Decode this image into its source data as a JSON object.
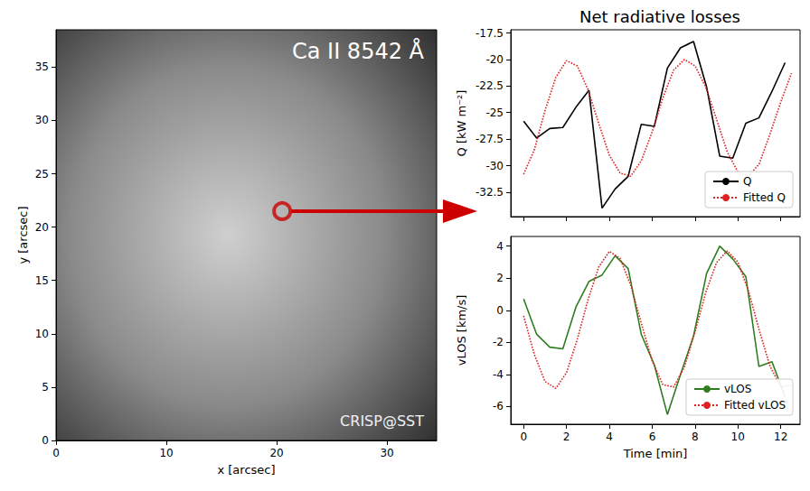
{
  "chart_data": [
    {
      "type": "image",
      "title": "Ca II 8542 Å",
      "annotations": [
        "CRISP@SST"
      ],
      "x_label": "x [arcsec]",
      "y_label": "y [arcsec]",
      "xlim": [
        0,
        34.5
      ],
      "xticks": [
        0,
        10,
        20,
        30
      ],
      "ylim": [
        0,
        38.5
      ],
      "yticks": [
        0,
        5,
        10,
        15,
        20,
        25,
        30,
        35
      ],
      "highlight": {
        "x": 20.5,
        "y": 21.5,
        "color": "#cc0000"
      }
    },
    {
      "type": "line",
      "title": "Net radiative losses",
      "y_label": "Q [kW m⁻²]",
      "xlim": [
        -0.6,
        12.9
      ],
      "xticks": [
        0,
        2,
        4,
        6,
        8,
        10,
        12
      ],
      "ylim": [
        -34.8,
        -17.2
      ],
      "yticks": [
        -32.5,
        -30,
        -27.5,
        -25,
        -22.5,
        -20,
        -17.5
      ],
      "tick_labels": "y",
      "legend": "lower right",
      "grid": false,
      "series": [
        {
          "name": "Q",
          "color": "#000000",
          "line_style": "solid",
          "x": [
            0,
            0.61,
            1.22,
            1.83,
            2.44,
            3.05,
            3.66,
            4.27,
            4.88,
            5.49,
            6.1,
            6.71,
            7.32,
            7.93,
            8.54,
            9.15,
            9.76,
            10.37,
            10.98,
            11.59,
            12.2
          ],
          "values": [
            -25.8,
            -27.4,
            -26.5,
            -26.4,
            -24.5,
            -22.9,
            -34.0,
            -32.2,
            -31.0,
            -26.1,
            -26.3,
            -20.8,
            -18.9,
            -18.3,
            -22.6,
            -29.1,
            -29.3,
            -26.0,
            -25.5,
            -23.0,
            -20.3
          ]
        },
        {
          "name": "Fitted Q",
          "color": "#e02020",
          "line_style": "dotted",
          "x": [
            0,
            0.5,
            1,
            1.5,
            2,
            2.5,
            3,
            3.5,
            4,
            4.5,
            5,
            5.5,
            6,
            6.5,
            7,
            7.5,
            8,
            8.5,
            9,
            9.5,
            10,
            10.5,
            11,
            11.5,
            12,
            12.5
          ],
          "values": [
            -30.8,
            -28.5,
            -24.8,
            -21.7,
            -20.1,
            -20.6,
            -22.8,
            -26.0,
            -29.0,
            -30.7,
            -31.0,
            -29.5,
            -26.8,
            -23.6,
            -21.0,
            -20.0,
            -20.6,
            -22.6,
            -25.6,
            -28.7,
            -30.6,
            -31.0,
            -29.8,
            -27.0,
            -24.0,
            -21.3
          ]
        }
      ]
    },
    {
      "type": "line",
      "x_label": "Time [min]",
      "y_label": "vLOS [km/s]",
      "xlim": [
        -0.6,
        12.9
      ],
      "xticks": [
        0,
        2,
        4,
        6,
        8,
        10,
        12
      ],
      "ylim": [
        -7.1,
        4.6
      ],
      "yticks": [
        -6,
        -4,
        -2,
        0,
        2,
        4
      ],
      "tick_labels": true,
      "legend": "lower right",
      "grid": false,
      "series": [
        {
          "name": "vLOS",
          "color": "#2e7d1e",
          "line_style": "solid",
          "x": [
            0,
            0.61,
            1.22,
            1.83,
            2.44,
            3.05,
            3.66,
            4.27,
            4.88,
            5.49,
            6.1,
            6.71,
            7.32,
            7.93,
            8.54,
            9.15,
            9.76,
            10.37,
            10.98,
            11.59,
            12.2
          ],
          "values": [
            0.7,
            -1.5,
            -2.3,
            -2.4,
            0.2,
            1.8,
            2.2,
            3.4,
            2.6,
            -1.5,
            -3.4,
            -6.5,
            -4.0,
            -1.6,
            2.3,
            4.0,
            3.2,
            2.1,
            -3.5,
            -3.2,
            -5.4
          ]
        },
        {
          "name": "Fitted vLOS",
          "color": "#e02020",
          "line_style": "dotted",
          "x": [
            0,
            0.5,
            1,
            1.5,
            2,
            2.5,
            3,
            3.5,
            4,
            4.5,
            5,
            5.5,
            6,
            6.5,
            7,
            7.5,
            8,
            8.5,
            9,
            9.5,
            10,
            10.5,
            11,
            11.5,
            12,
            12.5
          ],
          "values": [
            -0.35,
            -2.75,
            -4.44,
            -4.87,
            -3.89,
            -1.83,
            0.63,
            2.69,
            3.67,
            3.24,
            1.55,
            -0.85,
            -3.16,
            -4.64,
            -4.78,
            -3.55,
            -1.34,
            1.11,
            2.97,
            3.7,
            3.01,
            1.18,
            -1.27,
            -3.49,
            -4.77,
            -4.66
          ]
        }
      ]
    }
  ]
}
